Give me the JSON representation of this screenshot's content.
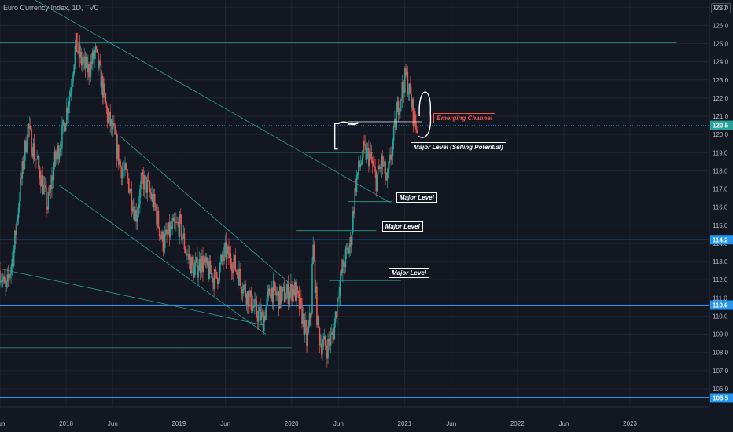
{
  "header": {
    "title": "Euro Currency Index, 1D, TVC",
    "currency": "USD"
  },
  "colors": {
    "background": "#131722",
    "grid": "#1f2430",
    "axis_text": "#b2b5be",
    "up": "#26a69a",
    "down": "#ef5350",
    "hline": "#2196f3",
    "trendline": "#2a9d8f",
    "annotation_red": "#ef5350",
    "annotation_white": "#ffffff"
  },
  "chart_data": {
    "type": "candlestick",
    "y_axis": {
      "range": [
        105.0,
        127.4
      ],
      "ticks": [
        "106.0",
        "107.0",
        "108.0",
        "109.0",
        "110.0",
        "111.0",
        "112.0",
        "113.0",
        "114.0",
        "115.0",
        "116.0",
        "117.0",
        "118.0",
        "119.0",
        "120.0",
        "121.0",
        "122.0",
        "123.0",
        "124.0",
        "125.0",
        "126.0",
        "127.0"
      ]
    },
    "x_axis": {
      "range": [
        "2017-06-01",
        "2023-09-15"
      ],
      "ticks": [
        {
          "label": "Jun",
          "date": "2017-06-01"
        },
        {
          "label": "2018",
          "date": "2018-01-01"
        },
        {
          "label": "Jun",
          "date": "2018-06-01"
        },
        {
          "label": "2019",
          "date": "2019-01-01"
        },
        {
          "label": "Jun",
          "date": "2019-06-01"
        },
        {
          "label": "2020",
          "date": "2020-01-01"
        },
        {
          "label": "Jun",
          "date": "2020-06-01"
        },
        {
          "label": "2021",
          "date": "2021-01-01"
        },
        {
          "label": "Jun",
          "date": "2021-06-01"
        },
        {
          "label": "2022",
          "date": "2022-01-01"
        },
        {
          "label": "Jun",
          "date": "2022-06-01"
        },
        {
          "label": "2023",
          "date": "2023-01-01"
        }
      ]
    },
    "price_path": [
      [
        "2017-06-01",
        112.5
      ],
      [
        "2017-06-20",
        111.3
      ],
      [
        "2017-07-15",
        113.5
      ],
      [
        "2017-08-05",
        117.0
      ],
      [
        "2017-08-30",
        120.4
      ],
      [
        "2017-09-20",
        119.0
      ],
      [
        "2017-10-10",
        117.8
      ],
      [
        "2017-11-01",
        116.0
      ],
      [
        "2017-11-25",
        118.5
      ],
      [
        "2017-12-20",
        120.0
      ],
      [
        "2018-01-15",
        122.5
      ],
      [
        "2018-02-01",
        125.0
      ],
      [
        "2018-02-20",
        124.0
      ],
      [
        "2018-03-15",
        123.5
      ],
      [
        "2018-04-05",
        124.5
      ],
      [
        "2018-04-25",
        123.0
      ],
      [
        "2018-05-15",
        121.0
      ],
      [
        "2018-06-05",
        120.0
      ],
      [
        "2018-06-25",
        118.3
      ],
      [
        "2018-07-20",
        117.5
      ],
      [
        "2018-08-15",
        115.5
      ],
      [
        "2018-09-05",
        117.5
      ],
      [
        "2018-09-25",
        117.0
      ],
      [
        "2018-10-15",
        116.0
      ],
      [
        "2018-11-10",
        114.0
      ],
      [
        "2018-12-10",
        114.8
      ],
      [
        "2019-01-05",
        115.0
      ],
      [
        "2019-01-25",
        113.5
      ],
      [
        "2019-02-20",
        112.5
      ],
      [
        "2019-03-15",
        113.0
      ],
      [
        "2019-04-05",
        112.5
      ],
      [
        "2019-05-01",
        112.0
      ],
      [
        "2019-06-01",
        113.5
      ],
      [
        "2019-06-25",
        113.0
      ],
      [
        "2019-07-20",
        112.0
      ],
      [
        "2019-08-15",
        111.0
      ],
      [
        "2019-09-10",
        110.2
      ],
      [
        "2019-10-01",
        109.8
      ],
      [
        "2019-10-25",
        111.5
      ],
      [
        "2019-11-20",
        111.0
      ],
      [
        "2019-12-15",
        111.2
      ],
      [
        "2020-01-10",
        111.5
      ],
      [
        "2020-02-05",
        110.0
      ],
      [
        "2020-02-20",
        108.5
      ],
      [
        "2020-03-05",
        110.5
      ],
      [
        "2020-03-10",
        114.0
      ],
      [
        "2020-03-25",
        109.5
      ],
      [
        "2020-04-05",
        108.5
      ],
      [
        "2020-04-25",
        108.3
      ],
      [
        "2020-05-15",
        109.0
      ],
      [
        "2020-06-01",
        111.5
      ],
      [
        "2020-06-20",
        113.0
      ],
      [
        "2020-07-10",
        114.0
      ],
      [
        "2020-07-28",
        117.5
      ],
      [
        "2020-08-20",
        119.0
      ],
      [
        "2020-09-10",
        118.8
      ],
      [
        "2020-10-01",
        117.5
      ],
      [
        "2020-10-20",
        118.5
      ],
      [
        "2020-11-05",
        117.3
      ],
      [
        "2020-11-20",
        119.0
      ],
      [
        "2020-12-10",
        121.5
      ],
      [
        "2020-12-28",
        122.8
      ],
      [
        "2021-01-06",
        123.2
      ],
      [
        "2021-01-15",
        122.5
      ],
      [
        "2021-01-30",
        121.0
      ],
      [
        "2021-02-10",
        120.3
      ]
    ],
    "horizontal_levels": [
      {
        "price": 125.05,
        "label": ""
      },
      {
        "price": 120.5,
        "label": "120.5"
      },
      {
        "price": 114.2,
        "label": "114.2"
      },
      {
        "price": 110.6,
        "label": "110.6"
      },
      {
        "price": 105.5,
        "label": "105.5"
      }
    ],
    "level_segments": [
      {
        "from": "2017-06-01",
        "to": "2020-01-01",
        "price": 108.25
      },
      {
        "from": "2020-01-15",
        "to": "2020-10-01",
        "price": 114.7
      },
      {
        "from": "2020-07-01",
        "to": "2020-11-20",
        "price": 116.3
      },
      {
        "from": "2020-05-01",
        "to": "2020-12-20",
        "price": 111.95
      },
      {
        "from": "2020-02-15",
        "to": "2020-09-20",
        "price": 119.0
      }
    ],
    "trendlines": [
      {
        "from": [
          "2017-06-01",
          128.5
        ],
        "to": [
          "2020-11-20",
          116.2
        ]
      },
      {
        "from": [
          "2017-06-01",
          112.6
        ],
        "to": [
          "2019-10-01",
          109.5
        ]
      },
      {
        "from": [
          "2018-06-25",
          119.9
        ],
        "to": [
          "2020-01-15",
          111.5
        ]
      },
      {
        "from": [
          "2017-12-10",
          117.2
        ],
        "to": [
          "2019-10-10",
          109.0
        ]
      }
    ],
    "annotations": [
      {
        "text": "Emerging Channel",
        "style": "red",
        "date": "2021-04-05",
        "price": 120.85
      },
      {
        "text": "Major Level (Selling Potential)",
        "style": "white",
        "date": "2021-01-20",
        "price": 119.25
      },
      {
        "text": "Major Level",
        "style": "white",
        "date": "2020-12-05",
        "price": 116.5
      },
      {
        "text": "Major Level",
        "style": "white",
        "date": "2020-10-20",
        "price": 114.9
      },
      {
        "text": "Major Level",
        "style": "white",
        "date": "2020-11-10",
        "price": 112.35
      }
    ],
    "current_price": 120.5
  }
}
